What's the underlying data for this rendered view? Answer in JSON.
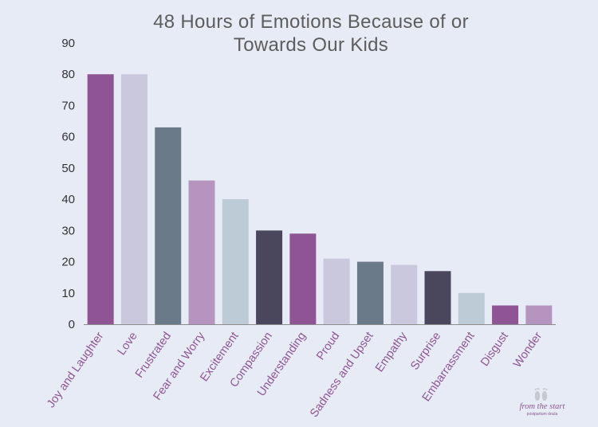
{
  "colors": {
    "background": "#e6ebf5",
    "bars": [
      "#8e5494",
      "#c9c8dc",
      "#6b7a88",
      "#b595bf",
      "#bccbd6",
      "#4a465c",
      "#8e5494",
      "#c9c8dc",
      "#6b7a88",
      "#c9c8dc",
      "#4a465c",
      "#bccbd6",
      "#8e5494",
      "#b595bf"
    ],
    "category_label": "#8e5494",
    "axis": "#8c8c8c"
  },
  "logo": {
    "text": "from the start",
    "subtext": "postpartum doula",
    "icon": "baby-feet-icon"
  },
  "chart_data": {
    "type": "bar",
    "title_lines": [
      "48 Hours of Emotions Because of or",
      "Towards Our Kids"
    ],
    "categories": [
      "Joy and Laughter",
      "Love",
      "Frustrated",
      "Fear and Worry",
      "Excitement",
      "Compassion",
      "Understanding",
      "Proud",
      "Sadness and Upset",
      "Empathy",
      "Surprise",
      "Embarrassment",
      "Disgust",
      "Wonder"
    ],
    "values": [
      80,
      80,
      63,
      46,
      40,
      30,
      29,
      21,
      20,
      19,
      17,
      10,
      6,
      6
    ],
    "ylim": [
      0,
      90
    ],
    "yticks": [
      0,
      10,
      20,
      30,
      40,
      50,
      60,
      70,
      80,
      90
    ],
    "xlabel": "",
    "ylabel": "",
    "grid": false,
    "legend": "none"
  }
}
